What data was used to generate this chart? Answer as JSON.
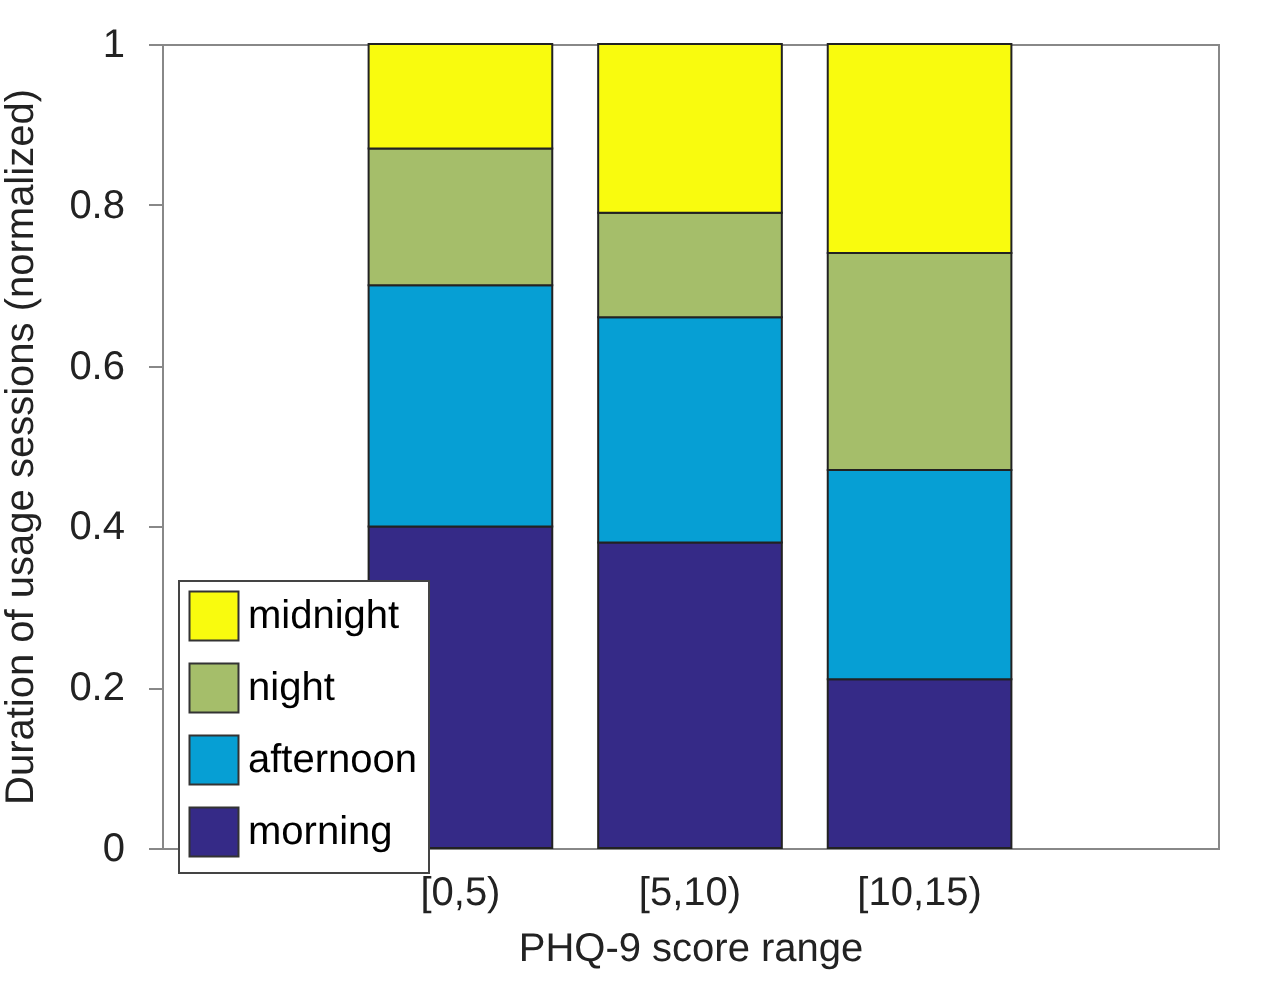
{
  "chart_data": {
    "type": "bar",
    "xlabel": "PHQ-9 score range",
    "ylabel": "Duration of usage sessions (normalized)",
    "categories": [
      "[0,5)",
      "[5,10)",
      "[10,15)"
    ],
    "stacked": true,
    "series": [
      {
        "name": "morning",
        "color": "#352a87",
        "values": [
          0.4,
          0.38,
          0.21
        ]
      },
      {
        "name": "afternoon",
        "color": "#069fd4",
        "values": [
          0.3,
          0.28,
          0.26
        ]
      },
      {
        "name": "night",
        "color": "#a5be6a",
        "values": [
          0.17,
          0.13,
          0.27
        ]
      },
      {
        "name": "midnight",
        "color": "#f9fb0e",
        "values": [
          0.13,
          0.21,
          0.26
        ]
      }
    ],
    "ylim": [
      0,
      1
    ],
    "yticks": [
      0,
      0.2,
      0.4,
      0.6,
      0.8,
      1
    ],
    "grid": false,
    "legend": "bottom left"
  }
}
